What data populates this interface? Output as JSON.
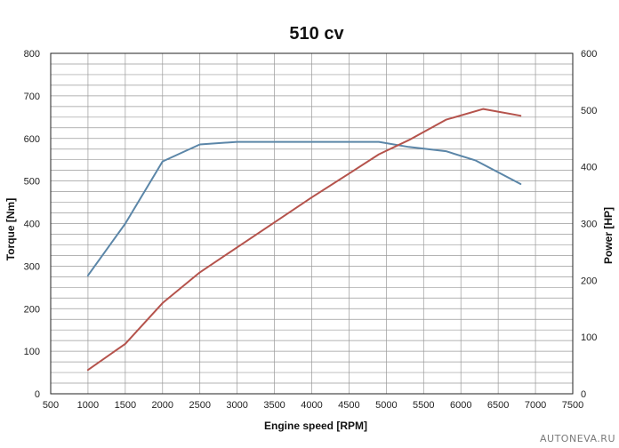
{
  "chart_data": {
    "type": "line",
    "title": "510 cv",
    "xlabel": "Engine speed [RPM]",
    "ylabel": "Torque [Nm]",
    "y2label": "Power [HP]",
    "xlim": [
      500,
      7500
    ],
    "ylim": [
      0,
      800
    ],
    "y2lim": [
      0,
      600
    ],
    "x_ticks": [
      500,
      1000,
      1500,
      2000,
      2500,
      3000,
      3500,
      4000,
      4500,
      5000,
      5500,
      6000,
      6500,
      7000,
      7500
    ],
    "y_ticks": [
      0,
      100,
      200,
      300,
      400,
      500,
      600,
      700,
      800
    ],
    "y2_ticks": [
      0,
      100,
      200,
      300,
      400,
      500,
      600
    ],
    "grid": true,
    "legend": "none",
    "series": [
      {
        "axis": "left",
        "color": "#5b86a8",
        "points": [
          [
            1000,
            278
          ],
          [
            1500,
            400
          ],
          [
            2000,
            546
          ],
          [
            2500,
            586
          ],
          [
            3000,
            592
          ],
          [
            3500,
            592
          ],
          [
            4000,
            592
          ],
          [
            4500,
            592
          ],
          [
            4900,
            592
          ],
          [
            5300,
            580
          ],
          [
            5800,
            570
          ],
          [
            6200,
            548
          ],
          [
            6800,
            493
          ]
        ]
      },
      {
        "axis": "right",
        "color": "#b5534c",
        "points": [
          [
            1000,
            42
          ],
          [
            1500,
            88
          ],
          [
            2000,
            160
          ],
          [
            2500,
            214
          ],
          [
            3000,
            258
          ],
          [
            3500,
            302
          ],
          [
            4000,
            346
          ],
          [
            4500,
            388
          ],
          [
            4900,
            422
          ],
          [
            5300,
            447
          ],
          [
            5800,
            483
          ],
          [
            6300,
            502
          ],
          [
            6800,
            490
          ]
        ]
      }
    ]
  },
  "watermark": "AUTONEVA.RU"
}
